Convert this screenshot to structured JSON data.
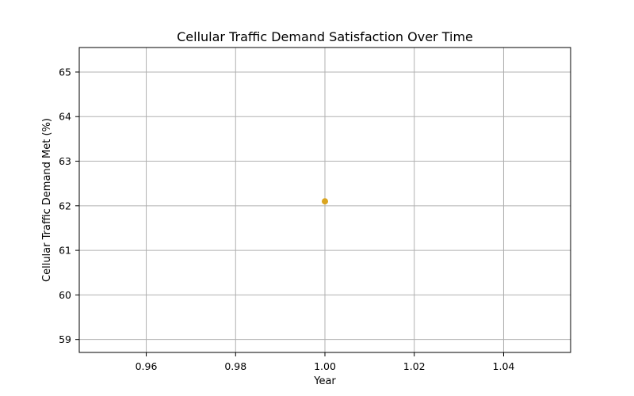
{
  "chart_data": {
    "type": "scatter",
    "title": "Cellular Traffic Demand Satisfaction Over Time",
    "xlabel": "Year",
    "ylabel": "Cellular Traffic Demand Met (%)",
    "xlim": [
      0.945,
      1.055
    ],
    "ylim": [
      58.71,
      65.55
    ],
    "xticks": [
      "0.96",
      "0.98",
      "1.00",
      "1.02",
      "1.04"
    ],
    "yticks": [
      "59",
      "60",
      "61",
      "62",
      "63",
      "64",
      "65"
    ],
    "grid": true,
    "series": [
      {
        "color": "#daa520",
        "points": [
          {
            "x": 1.0,
            "y": 62.1
          }
        ]
      }
    ]
  }
}
